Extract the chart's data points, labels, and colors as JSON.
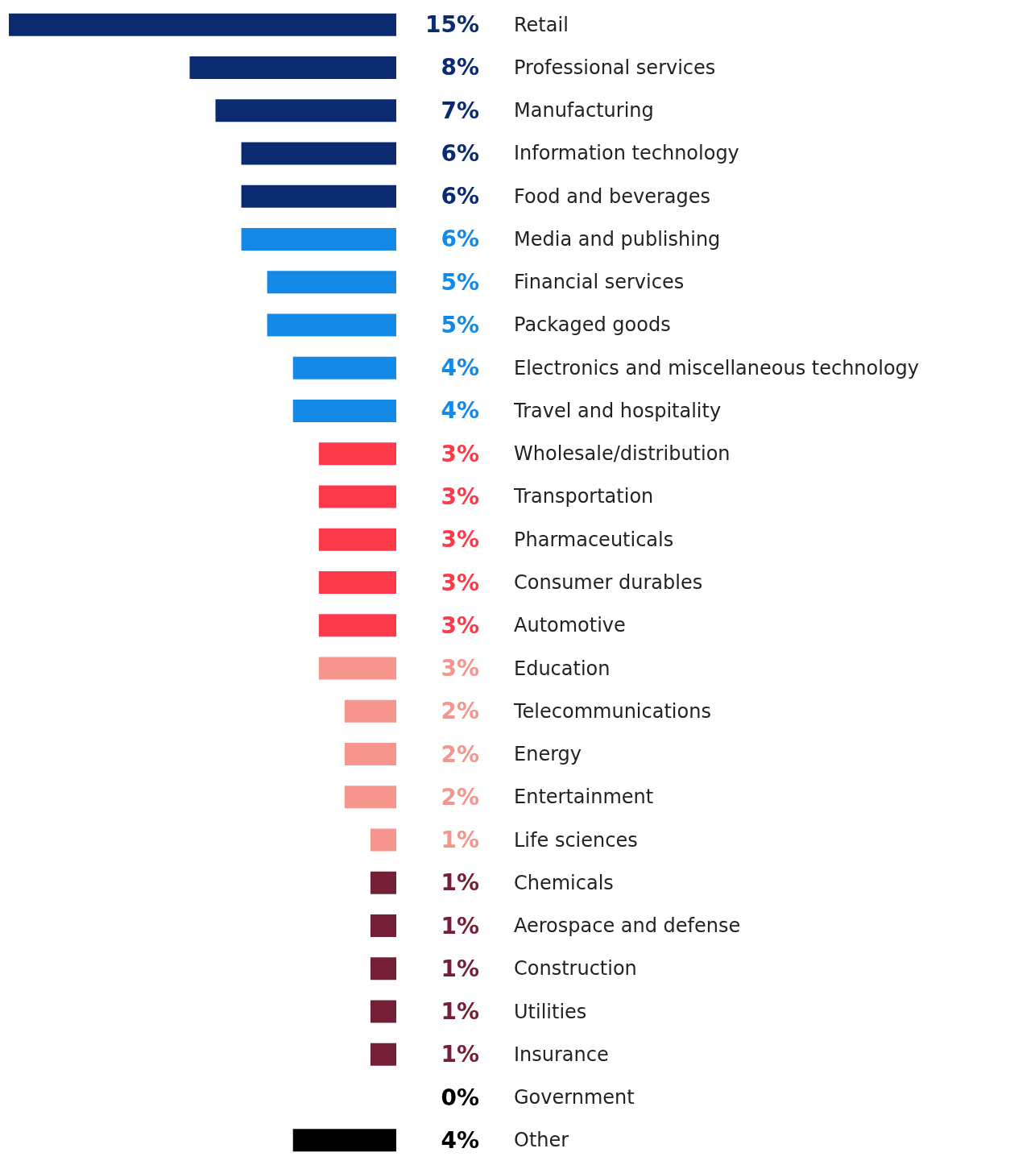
{
  "chart_data": {
    "type": "bar",
    "orientation": "horizontal",
    "categories": [
      "Retail",
      "Professional services",
      "Manufacturing",
      "Information technology",
      "Food and beverages",
      "Media and publishing",
      "Financial services",
      "Packaged goods",
      "Electronics and miscellaneous technology",
      "Travel and hospitality",
      "Wholesale/distribution",
      "Transportation",
      "Pharmaceuticals",
      "Consumer durables",
      "Automotive",
      "Education",
      "Telecommunications",
      "Energy",
      "Entertainment",
      "Life sciences",
      "Chemicals",
      "Aerospace and defense",
      "Construction",
      "Utilities",
      "Insurance",
      "Government",
      "Other"
    ],
    "values": [
      15,
      8,
      7,
      6,
      6,
      6,
      5,
      5,
      4,
      4,
      3,
      3,
      3,
      3,
      3,
      3,
      2,
      2,
      2,
      1,
      1,
      1,
      1,
      1,
      1,
      0,
      4
    ],
    "value_labels": [
      "15%",
      "8%",
      "7%",
      "6%",
      "6%",
      "6%",
      "5%",
      "5%",
      "4%",
      "4%",
      "3%",
      "3%",
      "3%",
      "3%",
      "3%",
      "3%",
      "2%",
      "2%",
      "2%",
      "1%",
      "1%",
      "1%",
      "1%",
      "1%",
      "1%",
      "0%",
      "4%"
    ],
    "colors": [
      "#0b2a6f",
      "#0b2a6f",
      "#0b2a6f",
      "#0b2a6f",
      "#0b2a6f",
      "#1589e6",
      "#1589e6",
      "#1589e6",
      "#1589e6",
      "#1589e6",
      "#fc3a4c",
      "#fc3a4c",
      "#fc3a4c",
      "#fc3a4c",
      "#fc3a4c",
      "#f5958d",
      "#f5958d",
      "#f5958d",
      "#f5958d",
      "#f5958d",
      "#741f36",
      "#741f36",
      "#741f36",
      "#741f36",
      "#741f36",
      "#000000",
      "#000000"
    ]
  }
}
